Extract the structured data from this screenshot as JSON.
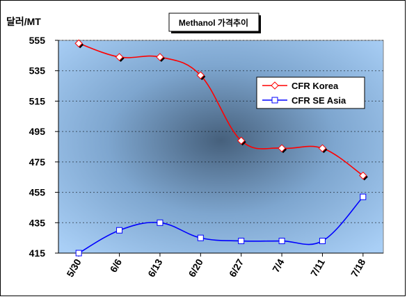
{
  "chart_data": {
    "type": "line",
    "title": "Methanol 가격추이",
    "ylabel": "달러/MT",
    "xlabel": "",
    "categories": [
      "5/30",
      "6/6",
      "6/13",
      "6/20",
      "6/27",
      "7/4",
      "7/11",
      "7/18"
    ],
    "ylim": [
      415,
      555
    ],
    "yticks": [
      415,
      435,
      455,
      475,
      495,
      515,
      535,
      555
    ],
    "ytick_labels": [
      "415",
      "435",
      "455",
      "475",
      "495",
      "515",
      "535",
      "555"
    ],
    "grid": true,
    "legend_position": "upper-right",
    "series": [
      {
        "name": "CFR Korea",
        "color": "#ff0000",
        "marker": "diamond",
        "values": [
          553,
          544,
          544,
          532,
          489,
          484,
          484,
          466
        ]
      },
      {
        "name": "CFR SE Asia",
        "color": "#0000ff",
        "marker": "square",
        "values": [
          415,
          430,
          435,
          425,
          423,
          423,
          423,
          452
        ]
      }
    ]
  }
}
